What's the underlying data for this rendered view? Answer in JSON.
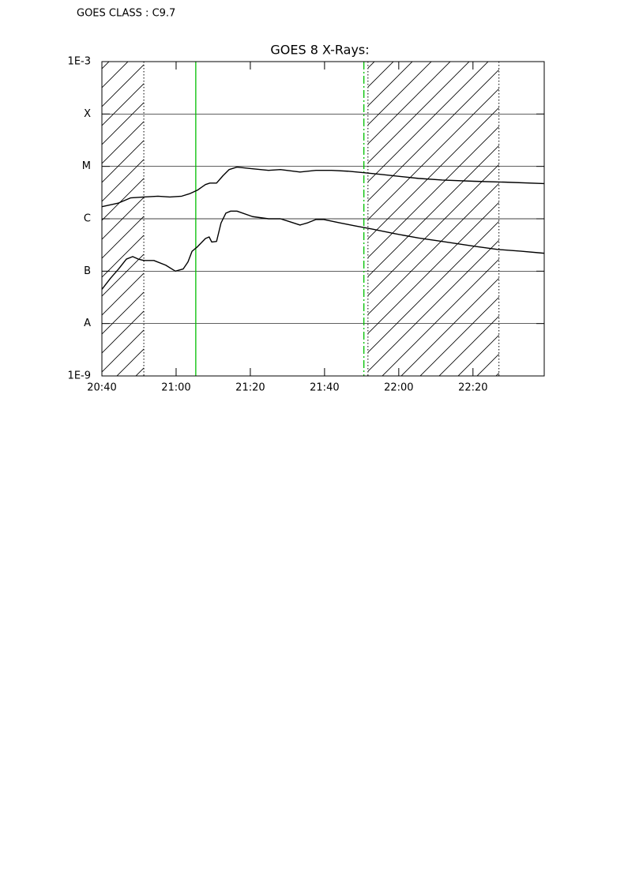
{
  "chart_data": {
    "type": "line",
    "class_label": "GOES CLASS : C9.7",
    "title": "GOES 8 X-Rays:",
    "log_y": true,
    "grid": true,
    "xlim": [
      1240,
      1359.2
    ],
    "xticks": [
      {
        "value": 1240,
        "label": "20:40"
      },
      {
        "value": 1260,
        "label": "21:00"
      },
      {
        "value": 1280,
        "label": "21:20"
      },
      {
        "value": 1300,
        "label": "21:40"
      },
      {
        "value": 1320,
        "label": "22:00"
      },
      {
        "value": 1340,
        "label": "22:20"
      }
    ],
    "ylim": [
      1e-09,
      0.001
    ],
    "yticks": [
      {
        "value": 0.001,
        "label": "1E-3"
      },
      {
        "value": 0.0001,
        "label": "X"
      },
      {
        "value": 1e-05,
        "label": "M"
      },
      {
        "value": 1e-06,
        "label": "C"
      },
      {
        "value": 1e-07,
        "label": "B"
      },
      {
        "value": 1e-08,
        "label": "A"
      },
      {
        "value": 1e-09,
        "label": "1E-9"
      }
    ],
    "shaded_intervals": [
      [
        1240,
        1251.3
      ],
      [
        1311.7,
        1347.0
      ]
    ],
    "vertical_lines": [
      {
        "x": 1265.3,
        "color": "#00c000",
        "style": "solid"
      },
      {
        "x": 1310.6,
        "color": "#00c000",
        "style": "dashdot"
      }
    ],
    "series": [
      {
        "color": "#000000",
        "x": [
          1240,
          1244.5,
          1247.7,
          1251.3,
          1255.1,
          1258.3,
          1261.5,
          1263.6,
          1265.7,
          1267.9,
          1269.1,
          1270.9,
          1272.6,
          1274.3,
          1276.4,
          1280.6,
          1284.9,
          1288.1,
          1293.4,
          1297.7,
          1301.9,
          1306.2,
          1310.4,
          1314.7,
          1318.9,
          1325.3,
          1331.7,
          1340.2,
          1348.7,
          1359.1
        ],
        "values": [
          1.7e-06,
          2e-06,
          2.5e-06,
          2.6e-06,
          2.7e-06,
          2.6e-06,
          2.7e-06,
          3e-06,
          3.5e-06,
          4.5e-06,
          4.8e-06,
          4.8e-06,
          6.6e-06,
          8.7e-06,
          9.7e-06,
          9e-06,
          8.4e-06,
          8.7e-06,
          7.8e-06,
          8.4e-06,
          8.4e-06,
          8.1e-06,
          7.6e-06,
          7.1e-06,
          6.6e-06,
          5.9e-06,
          5.5e-06,
          5.2e-06,
          5e-06,
          4.7e-06
        ]
      },
      {
        "color": "#000000",
        "x": [
          1240,
          1242.3,
          1244.5,
          1246.6,
          1248.3,
          1249.8,
          1251.3,
          1254.0,
          1257.2,
          1259.8,
          1261.9,
          1263.2,
          1264.3,
          1265.7,
          1267.9,
          1268.9,
          1269.6,
          1270.9,
          1272.1,
          1273.4,
          1274.7,
          1276.4,
          1280.6,
          1284.9,
          1288.1,
          1290.2,
          1293.4,
          1295.5,
          1297.7,
          1299.8,
          1304.0,
          1308.3,
          1312.6,
          1318.9,
          1325.3,
          1331.7,
          1340.2,
          1346.6,
          1353.0,
          1359.1
        ],
        "values": [
          4.5e-08,
          7.3e-08,
          1.1e-07,
          1.7e-07,
          1.9e-07,
          1.7e-07,
          1.6e-07,
          1.6e-07,
          1.3e-07,
          1e-07,
          1.1e-07,
          1.5e-07,
          2.4e-07,
          2.9e-07,
          4.2e-07,
          4.5e-07,
          3.6e-07,
          3.7e-07,
          8.3e-07,
          1.28e-06,
          1.4e-06,
          1.4e-06,
          1.1e-06,
          1e-06,
          1e-06,
          9e-07,
          7.6e-07,
          8.4e-07,
          9.7e-07,
          9.7e-07,
          8.4e-07,
          7.3e-07,
          6.4e-07,
          5.2e-07,
          4.3e-07,
          3.7e-07,
          3e-07,
          2.6e-07,
          2.4e-07,
          2.2e-07
        ]
      }
    ]
  }
}
